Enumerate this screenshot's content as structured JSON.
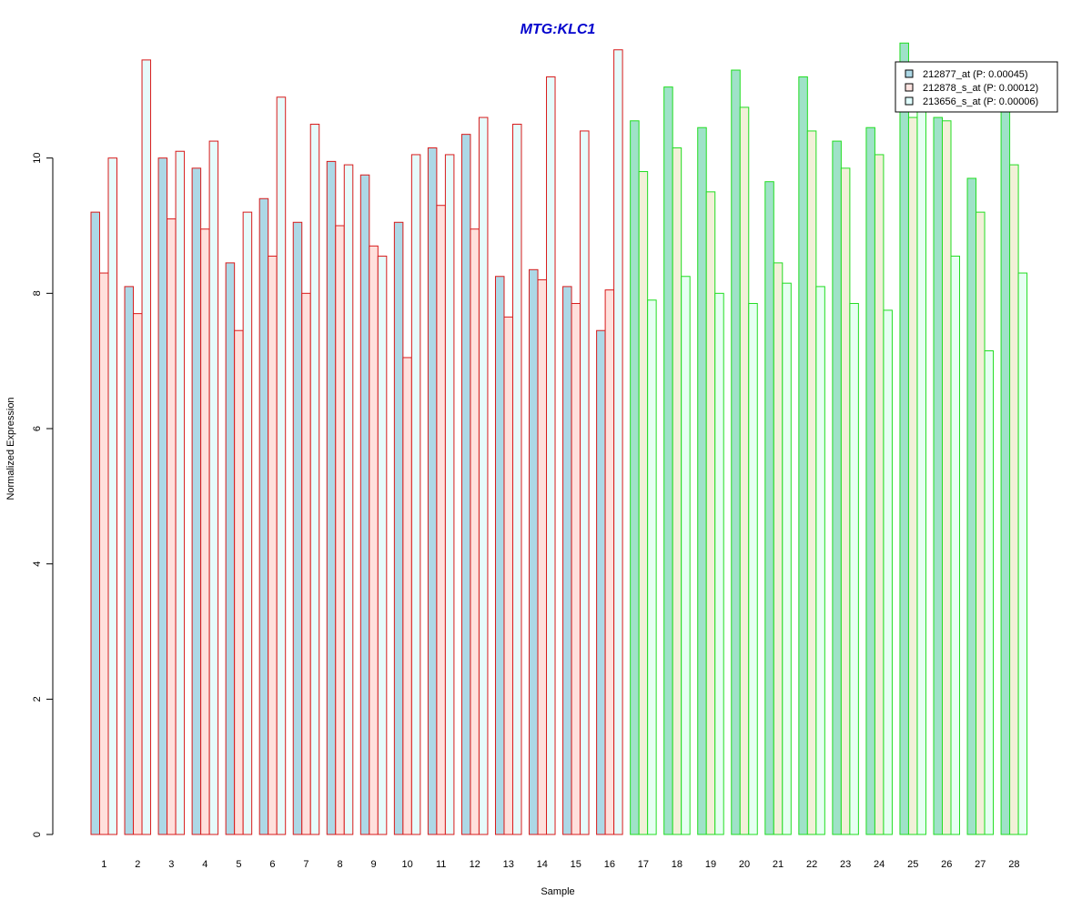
{
  "chart_data": {
    "type": "bar",
    "title": "MTG:KLC1",
    "xlabel": "Sample",
    "ylabel": "Normalized Expression",
    "ylim": [
      0,
      12
    ],
    "yticks": [
      0,
      2,
      4,
      6,
      8,
      10
    ],
    "grid": false,
    "legend_position": "top-right",
    "categories": [
      "1",
      "2",
      "3",
      "4",
      "5",
      "6",
      "7",
      "8",
      "9",
      "10",
      "11",
      "12",
      "13",
      "14",
      "15",
      "16",
      "17",
      "18",
      "19",
      "20",
      "21",
      "22",
      "23",
      "24",
      "25",
      "26",
      "27",
      "28"
    ],
    "groups": [
      {
        "samples": [
          1,
          16
        ],
        "border_color": "#d81b1b"
      },
      {
        "samples": [
          17,
          28
        ],
        "border_color": "#22dd22"
      }
    ],
    "series": [
      {
        "name": "212877_at (P: 0.00045)",
        "legend_fill": "#add8e6",
        "fill_group1": "#add8e6",
        "fill_group2": "#9fe2c8",
        "values": [
          9.2,
          8.1,
          10.0,
          9.85,
          8.45,
          9.4,
          9.05,
          9.95,
          9.75,
          9.05,
          10.15,
          10.35,
          8.25,
          8.35,
          8.1,
          7.45,
          10.55,
          11.05,
          10.45,
          11.3,
          9.65,
          11.2,
          10.25,
          10.45,
          11.7,
          10.6,
          9.7,
          10.85
        ]
      },
      {
        "name": "212878_s_at (P: 0.00012)",
        "legend_fill": "#ffe4e1",
        "fill_group1": "#ffe0dc",
        "fill_group2": "#f2f0d8",
        "values": [
          8.3,
          7.7,
          9.1,
          8.95,
          7.45,
          8.55,
          8.0,
          9.0,
          8.7,
          7.05,
          9.3,
          8.95,
          7.65,
          8.2,
          7.85,
          8.05,
          9.8,
          10.15,
          9.5,
          10.75,
          8.45,
          10.4,
          9.85,
          10.05,
          10.6,
          10.55,
          9.2,
          9.9
        ]
      },
      {
        "name": "213656_s_at (P: 0.00006)",
        "legend_fill": "#e0ffff",
        "fill_group1": "#e6fbfb",
        "fill_group2": "#e6fff2",
        "values": [
          10.0,
          11.45,
          10.1,
          10.25,
          9.2,
          10.9,
          10.5,
          9.9,
          8.55,
          10.05,
          10.05,
          10.6,
          10.5,
          11.2,
          10.4,
          11.6,
          7.9,
          8.25,
          8.0,
          7.85,
          8.15,
          8.1,
          7.85,
          7.75,
          10.8,
          8.55,
          7.15,
          8.3
        ]
      }
    ]
  }
}
